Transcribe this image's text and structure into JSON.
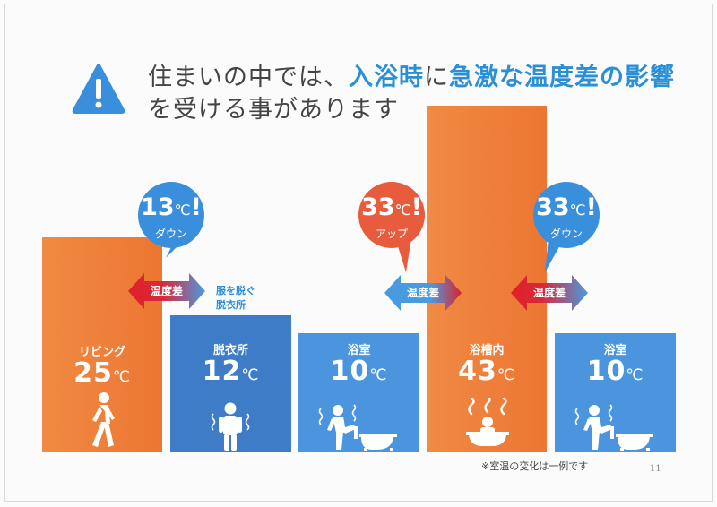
{
  "title": {
    "line1_prefix": "住まいの中では、",
    "line1_em1": "入浴時",
    "line1_mid": "に",
    "line1_em2": "急激な温度差の影響",
    "line2": "を受ける事があります"
  },
  "colors": {
    "warm": "#ee7d3c",
    "cool_dark": "#3f7cc7",
    "cool_light": "#4a95dd",
    "hot_bubble": "#e85c3e",
    "cold_bubble": "#3a8fdd",
    "accent_text": "#2b8fd6"
  },
  "rooms": [
    {
      "label": "リビング",
      "temp": "25",
      "unit": "℃",
      "icon": "walking-person-icon"
    },
    {
      "label": "脱衣所",
      "temp": "12",
      "unit": "℃",
      "icon": "shivering-person-icon"
    },
    {
      "label": "浴室",
      "temp": "10",
      "unit": "℃",
      "icon": "person-entering-bath-icon"
    },
    {
      "label": "浴槽内",
      "temp": "43",
      "unit": "℃",
      "icon": "person-in-hot-bath-icon"
    },
    {
      "label": "浴室",
      "temp": "10",
      "unit": "℃",
      "icon": "person-leaving-bath-icon"
    }
  ],
  "bubbles": [
    {
      "value": "13",
      "unit": "℃",
      "mark": "!",
      "direction": "ダウン"
    },
    {
      "value": "33",
      "unit": "℃",
      "mark": "!",
      "direction": "アップ"
    },
    {
      "value": "33",
      "unit": "℃",
      "mark": "!",
      "direction": "ダウン"
    }
  ],
  "arrows": [
    {
      "label": "温度差"
    },
    {
      "label": "温度差"
    },
    {
      "label": "温度差"
    }
  ],
  "floor_note": {
    "line1": "服を脱ぐ",
    "line2": "脱衣所"
  },
  "footnote": "※室温の変化は一例です",
  "page_number": "11"
}
